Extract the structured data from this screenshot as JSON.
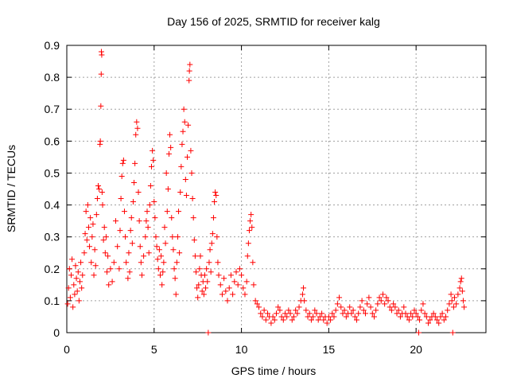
{
  "chart_data": {
    "type": "scatter",
    "title": "Day 156 of 2025, SRMTID for receiver kalg",
    "xlabel": "GPS time / hours",
    "ylabel": "SRMTID / TECUs",
    "xlim": [
      0,
      24
    ],
    "ylim": [
      0,
      0.9
    ],
    "xticks": [
      0,
      5,
      10,
      15,
      20
    ],
    "yticks": [
      0,
      0.1,
      0.2,
      0.3,
      0.4,
      0.5,
      0.6,
      0.7,
      0.8,
      0.9
    ],
    "grid": true,
    "marker": "plus",
    "color": "#ff0000",
    "series": [
      {
        "name": "SRMTID",
        "points": [
          [
            0.05,
            0.09
          ],
          [
            0.1,
            0.14
          ],
          [
            0.15,
            0.2
          ],
          [
            0.2,
            0.11
          ],
          [
            0.25,
            0.18
          ],
          [
            0.3,
            0.23
          ],
          [
            0.35,
            0.08
          ],
          [
            0.4,
            0.15
          ],
          [
            0.45,
            0.12
          ],
          [
            0.5,
            0.21
          ],
          [
            0.55,
            0.17
          ],
          [
            0.6,
            0.13
          ],
          [
            0.65,
            0.19
          ],
          [
            0.7,
            0.1
          ],
          [
            0.75,
            0.16
          ],
          [
            0.8,
            0.22
          ],
          [
            0.85,
            0.14
          ],
          [
            0.9,
            0.18
          ],
          [
            1.0,
            0.25
          ],
          [
            1.05,
            0.31
          ],
          [
            1.1,
            0.38
          ],
          [
            1.15,
            0.29
          ],
          [
            1.2,
            0.4
          ],
          [
            1.25,
            0.33
          ],
          [
            1.3,
            0.27
          ],
          [
            1.35,
            0.36
          ],
          [
            1.4,
            0.22
          ],
          [
            1.45,
            0.3
          ],
          [
            1.5,
            0.34
          ],
          [
            1.55,
            0.18
          ],
          [
            1.6,
            0.26
          ],
          [
            1.65,
            0.21
          ],
          [
            1.7,
            0.37
          ],
          [
            1.75,
            0.42
          ],
          [
            1.8,
            0.46
          ],
          [
            1.85,
            0.45
          ],
          [
            1.9,
            0.59
          ],
          [
            1.92,
            0.6
          ],
          [
            1.95,
            0.71
          ],
          [
            1.97,
            0.81
          ],
          [
            1.98,
            0.88
          ],
          [
            2.0,
            0.87
          ],
          [
            2.02,
            0.44
          ],
          [
            2.05,
            0.4
          ],
          [
            2.1,
            0.29
          ],
          [
            2.15,
            0.33
          ],
          [
            2.2,
            0.25
          ],
          [
            2.25,
            0.3
          ],
          [
            2.3,
            0.19
          ],
          [
            2.35,
            0.24
          ],
          [
            2.4,
            0.15
          ],
          [
            2.5,
            0.2
          ],
          [
            2.6,
            0.16
          ],
          [
            2.7,
            0.22
          ],
          [
            2.8,
            0.35
          ],
          [
            2.9,
            0.27
          ],
          [
            3.0,
            0.2
          ],
          [
            3.05,
            0.32
          ],
          [
            3.1,
            0.42
          ],
          [
            3.15,
            0.49
          ],
          [
            3.2,
            0.53
          ],
          [
            3.25,
            0.54
          ],
          [
            3.3,
            0.38
          ],
          [
            3.35,
            0.3
          ],
          [
            3.4,
            0.22
          ],
          [
            3.5,
            0.17
          ],
          [
            3.55,
            0.25
          ],
          [
            3.6,
            0.19
          ],
          [
            3.65,
            0.32
          ],
          [
            3.7,
            0.36
          ],
          [
            3.75,
            0.28
          ],
          [
            3.8,
            0.41
          ],
          [
            3.85,
            0.47
          ],
          [
            3.9,
            0.53
          ],
          [
            3.95,
            0.62
          ],
          [
            4.0,
            0.66
          ],
          [
            4.05,
            0.64
          ],
          [
            4.1,
            0.44
          ],
          [
            4.15,
            0.35
          ],
          [
            4.2,
            0.27
          ],
          [
            4.25,
            0.22
          ],
          [
            4.3,
            0.18
          ],
          [
            4.4,
            0.24
          ],
          [
            4.5,
            0.3
          ],
          [
            4.55,
            0.35
          ],
          [
            4.6,
            0.38
          ],
          [
            4.65,
            0.33
          ],
          [
            4.7,
            0.25
          ],
          [
            4.75,
            0.4
          ],
          [
            4.8,
            0.46
          ],
          [
            4.85,
            0.52
          ],
          [
            4.9,
            0.57
          ],
          [
            4.95,
            0.54
          ],
          [
            5.0,
            0.41
          ],
          [
            5.05,
            0.36
          ],
          [
            5.1,
            0.3
          ],
          [
            5.15,
            0.27
          ],
          [
            5.2,
            0.23
          ],
          [
            5.25,
            0.2
          ],
          [
            5.3,
            0.26
          ],
          [
            5.35,
            0.18
          ],
          [
            5.4,
            0.24
          ],
          [
            5.45,
            0.15
          ],
          [
            5.5,
            0.19
          ],
          [
            5.55,
            0.22
          ],
          [
            5.6,
            0.33
          ],
          [
            5.65,
            0.28
          ],
          [
            5.7,
            0.5
          ],
          [
            5.75,
            0.38
          ],
          [
            5.8,
            0.45
          ],
          [
            5.85,
            0.56
          ],
          [
            5.9,
            0.62
          ],
          [
            5.95,
            0.58
          ],
          [
            6.0,
            0.36
          ],
          [
            6.05,
            0.3
          ],
          [
            6.1,
            0.26
          ],
          [
            6.15,
            0.2
          ],
          [
            6.2,
            0.17
          ],
          [
            6.25,
            0.12
          ],
          [
            6.3,
            0.22
          ],
          [
            6.35,
            0.3
          ],
          [
            6.4,
            0.38
          ],
          [
            6.45,
            0.25
          ],
          [
            6.5,
            0.44
          ],
          [
            6.55,
            0.52
          ],
          [
            6.6,
            0.59
          ],
          [
            6.65,
            0.63
          ],
          [
            6.7,
            0.7
          ],
          [
            6.75,
            0.66
          ],
          [
            6.8,
            0.48
          ],
          [
            6.85,
            0.43
          ],
          [
            6.9,
            0.55
          ],
          [
            6.95,
            0.65
          ],
          [
            7.0,
            0.79
          ],
          [
            7.02,
            0.82
          ],
          [
            7.05,
            0.84
          ],
          [
            7.1,
            0.57
          ],
          [
            7.15,
            0.5
          ],
          [
            7.2,
            0.42
          ],
          [
            7.25,
            0.36
          ],
          [
            7.3,
            0.29
          ],
          [
            7.35,
            0.24
          ],
          [
            7.4,
            0.19
          ],
          [
            7.45,
            0.14
          ],
          [
            7.5,
            0.11
          ],
          [
            7.55,
            0.15
          ],
          [
            7.6,
            0.2
          ],
          [
            7.65,
            0.24
          ],
          [
            7.7,
            0.18
          ],
          [
            7.75,
            0.13
          ],
          [
            7.8,
            0.16
          ],
          [
            7.85,
            0.12
          ],
          [
            7.9,
            0.18
          ],
          [
            7.95,
            0.14
          ],
          [
            8.0,
            0.2
          ],
          [
            8.05,
            0.16
          ],
          [
            8.1,
            0.0
          ],
          [
            8.15,
            0.22
          ],
          [
            8.2,
            0.26
          ],
          [
            8.25,
            0.19
          ],
          [
            8.3,
            0.28
          ],
          [
            8.35,
            0.31
          ],
          [
            8.4,
            0.36
          ],
          [
            8.45,
            0.41
          ],
          [
            8.5,
            0.44
          ],
          [
            8.55,
            0.43
          ],
          [
            8.6,
            0.3
          ],
          [
            8.65,
            0.22
          ],
          [
            8.7,
            0.18
          ],
          [
            8.8,
            0.15
          ],
          [
            8.9,
            0.12
          ],
          [
            9.0,
            0.17
          ],
          [
            9.1,
            0.13
          ],
          [
            9.2,
            0.1
          ],
          [
            9.3,
            0.14
          ],
          [
            9.4,
            0.18
          ],
          [
            9.5,
            0.12
          ],
          [
            9.6,
            0.16
          ],
          [
            9.7,
            0.19
          ],
          [
            9.8,
            0.15
          ],
          [
            9.9,
            0.2
          ],
          [
            10.0,
            0.18
          ],
          [
            10.1,
            0.14
          ],
          [
            10.2,
            0.12
          ],
          [
            10.3,
            0.16
          ],
          [
            10.35,
            0.24
          ],
          [
            10.4,
            0.28
          ],
          [
            10.45,
            0.32
          ],
          [
            10.5,
            0.35
          ],
          [
            10.55,
            0.37
          ],
          [
            10.6,
            0.33
          ],
          [
            10.65,
            0.22
          ],
          [
            10.7,
            0.15
          ],
          [
            10.8,
            0.1
          ],
          [
            10.9,
            0.09
          ],
          [
            11.0,
            0.08
          ],
          [
            11.1,
            0.06
          ],
          [
            11.2,
            0.05
          ],
          [
            11.3,
            0.07
          ],
          [
            11.4,
            0.04
          ],
          [
            11.5,
            0.06
          ],
          [
            11.6,
            0.05
          ],
          [
            11.7,
            0.03
          ],
          [
            11.8,
            0.05
          ],
          [
            11.9,
            0.04
          ],
          [
            12.0,
            0.06
          ],
          [
            12.1,
            0.08
          ],
          [
            12.2,
            0.07
          ],
          [
            12.3,
            0.05
          ],
          [
            12.4,
            0.04
          ],
          [
            12.5,
            0.06
          ],
          [
            12.6,
            0.05
          ],
          [
            12.7,
            0.07
          ],
          [
            12.8,
            0.06
          ],
          [
            12.9,
            0.04
          ],
          [
            13.0,
            0.05
          ],
          [
            13.1,
            0.07
          ],
          [
            13.2,
            0.06
          ],
          [
            13.3,
            0.08
          ],
          [
            13.4,
            0.1
          ],
          [
            13.5,
            0.12
          ],
          [
            13.55,
            0.14
          ],
          [
            13.6,
            0.1
          ],
          [
            13.7,
            0.07
          ],
          [
            13.8,
            0.05
          ],
          [
            13.9,
            0.06
          ],
          [
            14.0,
            0.04
          ],
          [
            14.1,
            0.05
          ],
          [
            14.2,
            0.07
          ],
          [
            14.3,
            0.06
          ],
          [
            14.4,
            0.04
          ],
          [
            14.5,
            0.05
          ],
          [
            14.6,
            0.06
          ],
          [
            14.7,
            0.04
          ],
          [
            14.8,
            0.05
          ],
          [
            14.9,
            0.03
          ],
          [
            15.0,
            0.05
          ],
          [
            15.1,
            0.04
          ],
          [
            15.2,
            0.06
          ],
          [
            15.3,
            0.05
          ],
          [
            15.4,
            0.07
          ],
          [
            15.5,
            0.09
          ],
          [
            15.6,
            0.11
          ],
          [
            15.7,
            0.08
          ],
          [
            15.8,
            0.06
          ],
          [
            15.9,
            0.07
          ],
          [
            16.0,
            0.05
          ],
          [
            16.1,
            0.06
          ],
          [
            16.2,
            0.08
          ],
          [
            16.3,
            0.06
          ],
          [
            16.4,
            0.07
          ],
          [
            16.5,
            0.05
          ],
          [
            16.6,
            0.04
          ],
          [
            16.7,
            0.06
          ],
          [
            16.8,
            0.08
          ],
          [
            16.9,
            0.1
          ],
          [
            17.0,
            0.07
          ],
          [
            17.1,
            0.06
          ],
          [
            17.2,
            0.09
          ],
          [
            17.3,
            0.11
          ],
          [
            17.4,
            0.08
          ],
          [
            17.5,
            0.06
          ],
          [
            17.6,
            0.05
          ],
          [
            17.7,
            0.07
          ],
          [
            17.8,
            0.09
          ],
          [
            17.9,
            0.11
          ],
          [
            18.0,
            0.1
          ],
          [
            18.1,
            0.12
          ],
          [
            18.2,
            0.09
          ],
          [
            18.3,
            0.11
          ],
          [
            18.4,
            0.1
          ],
          [
            18.5,
            0.08
          ],
          [
            18.6,
            0.07
          ],
          [
            18.7,
            0.09
          ],
          [
            18.8,
            0.08
          ],
          [
            18.9,
            0.06
          ],
          [
            19.0,
            0.07
          ],
          [
            19.1,
            0.05
          ],
          [
            19.2,
            0.06
          ],
          [
            19.3,
            0.08
          ],
          [
            19.4,
            0.06
          ],
          [
            19.5,
            0.05
          ],
          [
            19.6,
            0.04
          ],
          [
            19.7,
            0.06
          ],
          [
            19.8,
            0.05
          ],
          [
            19.9,
            0.07
          ],
          [
            20.0,
            0.06
          ],
          [
            20.1,
            0.05
          ],
          [
            20.15,
            0.0
          ],
          [
            20.2,
            0.04
          ],
          [
            20.3,
            0.07
          ],
          [
            20.4,
            0.09
          ],
          [
            20.5,
            0.06
          ],
          [
            20.6,
            0.05
          ],
          [
            20.7,
            0.03
          ],
          [
            20.8,
            0.04
          ],
          [
            20.9,
            0.05
          ],
          [
            21.0,
            0.06
          ],
          [
            21.1,
            0.05
          ],
          [
            21.2,
            0.04
          ],
          [
            21.3,
            0.03
          ],
          [
            21.4,
            0.05
          ],
          [
            21.5,
            0.06
          ],
          [
            21.6,
            0.04
          ],
          [
            21.7,
            0.05
          ],
          [
            21.8,
            0.07
          ],
          [
            21.9,
            0.09
          ],
          [
            22.0,
            0.12
          ],
          [
            22.05,
            0.1
          ],
          [
            22.1,
            0.0
          ],
          [
            22.15,
            0.08
          ],
          [
            22.2,
            0.11
          ],
          [
            22.3,
            0.09
          ],
          [
            22.4,
            0.12
          ],
          [
            22.5,
            0.14
          ],
          [
            22.55,
            0.16
          ],
          [
            22.6,
            0.17
          ],
          [
            22.65,
            0.13
          ],
          [
            22.7,
            0.1
          ],
          [
            22.75,
            0.08
          ]
        ]
      }
    ]
  }
}
